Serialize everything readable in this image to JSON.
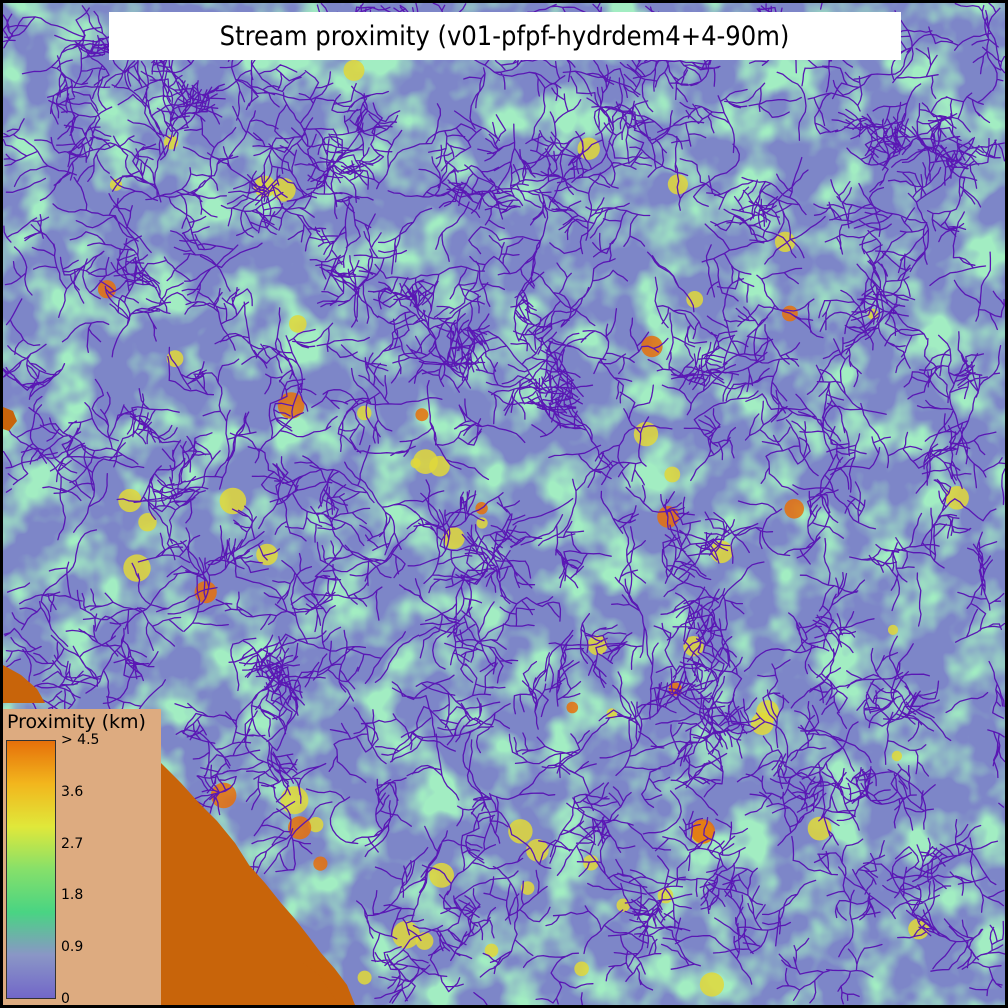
{
  "title": "Stream proximity (v01-pfpf-hydrdem4+4-90m)",
  "legend": {
    "title": "Proximity (km)",
    "ticks": [
      {
        "label": "> 4.5",
        "value": 4.5
      },
      {
        "label": "3.6",
        "value": 3.6
      },
      {
        "label": "2.7",
        "value": 2.7
      },
      {
        "label": "1.8",
        "value": 1.8
      },
      {
        "label": "0.9",
        "value": 0.9
      },
      {
        "label": "0",
        "value": 0
      }
    ],
    "range_km": [
      0,
      4.5
    ],
    "colors": [
      "#7267c9",
      "#8a96c6",
      "#49d483",
      "#86e06a",
      "#e0e83a",
      "#f2b61d",
      "#e6700a"
    ]
  },
  "colors": {
    "stream_network": "#5a17b4",
    "near_stream": "#7d86c8",
    "mid_distance": "#5cd98a",
    "far_distance": "#e6c433",
    "outside_domain": "#ddab80",
    "no_data_border": "#c8640a"
  }
}
